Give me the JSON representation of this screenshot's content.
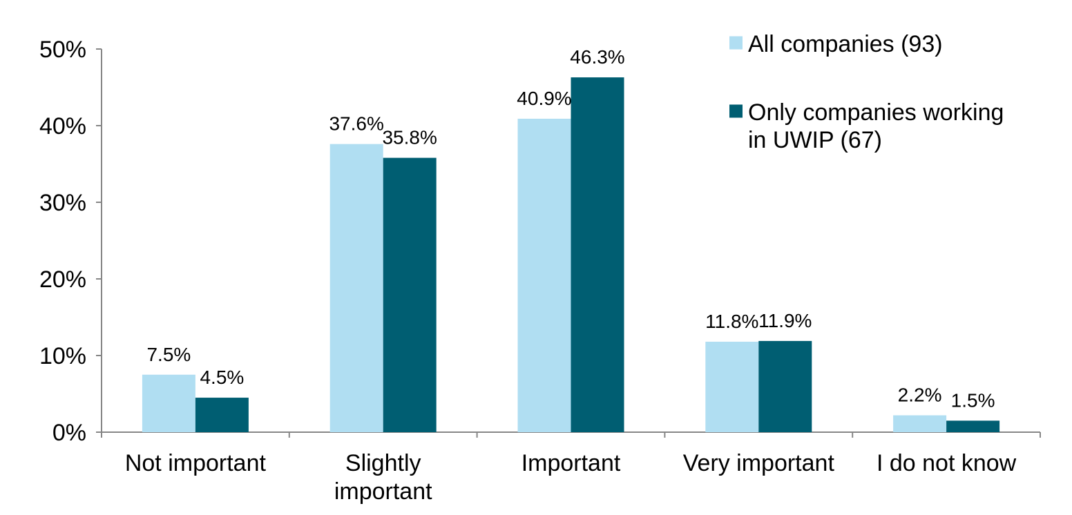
{
  "chart_data": {
    "type": "bar",
    "categories": [
      [
        "Not important"
      ],
      [
        "Slightly",
        "important"
      ],
      [
        "Important"
      ],
      [
        "Very important"
      ],
      [
        "I do not know"
      ]
    ],
    "series": [
      {
        "name": [
          "All companies (93)"
        ],
        "color": "#b0def2",
        "values": [
          7.5,
          37.6,
          40.9,
          11.8,
          2.2
        ],
        "labels": [
          "7.5%",
          "37.6%",
          "40.9%",
          "11.8%",
          "2.2%"
        ]
      },
      {
        "name": [
          "Only companies working",
          "in UWIP (67)"
        ],
        "color": "#005e72",
        "values": [
          4.5,
          35.8,
          46.3,
          11.9,
          1.5
        ],
        "labels": [
          "4.5%",
          "35.8%",
          "46.3%",
          "11.9%",
          "1.5%"
        ]
      }
    ],
    "ylim": [
      0,
      50
    ],
    "yticks": [
      "0%",
      "10%",
      "20%",
      "30%",
      "40%",
      "50%"
    ],
    "legend_position": "top-right",
    "grid": false
  }
}
